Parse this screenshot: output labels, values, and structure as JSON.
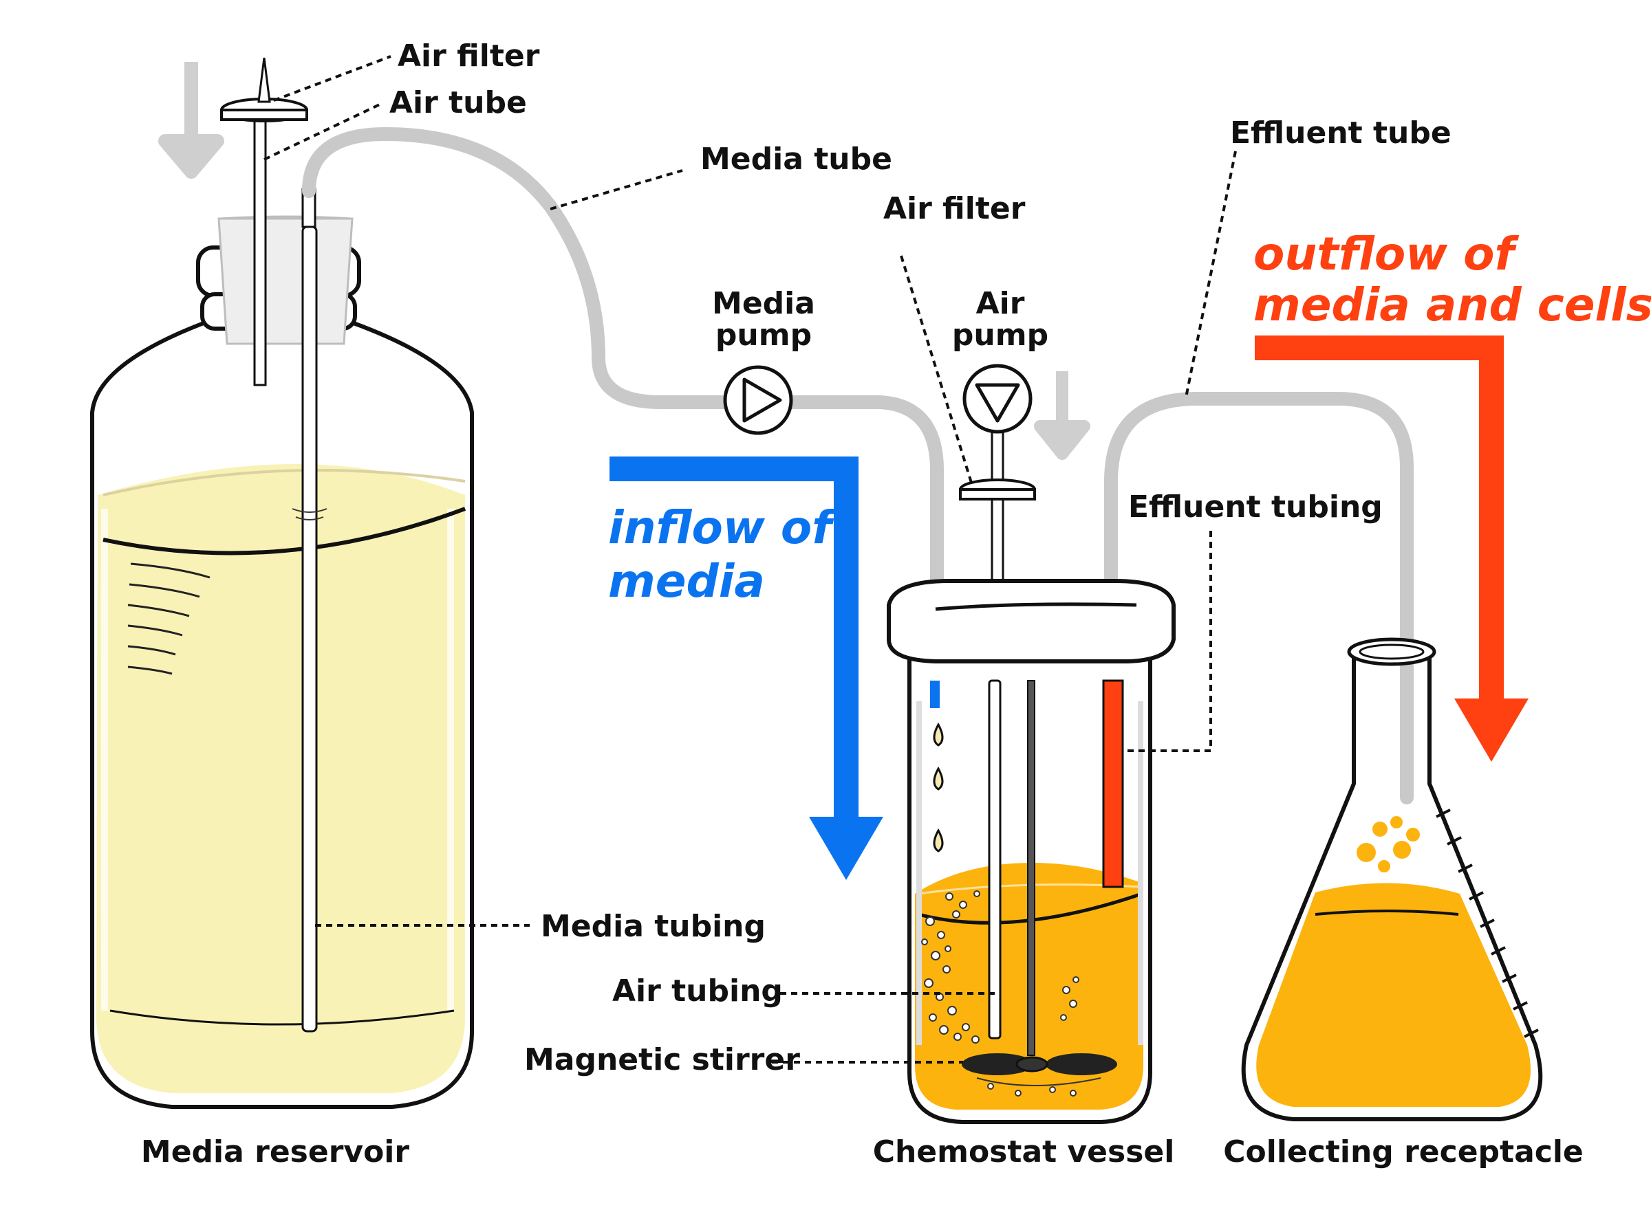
{
  "labels": {
    "air_filter_top": "Air filter",
    "air_tube": "Air tube",
    "media_tube": "Media tube",
    "air_filter_mid": "Air filter",
    "effluent_tube": "Effluent tube",
    "media_pump_1": "Media",
    "media_pump_2": "pump",
    "air_pump_1": "Air",
    "air_pump_2": "pump",
    "effluent_tubing": "Effluent tubing",
    "media_tubing": "Media tubing",
    "air_tubing": "Air tubing",
    "magnetic_stirrer": "Magnetic stirrer",
    "media_reservoir": "Media reservoir",
    "chemostat_vessel": "Chemostat vessel",
    "collecting_receptacle": "Collecting  receptacle"
  },
  "flows": {
    "inflow_1": "inflow of",
    "inflow_2": "media",
    "outflow_1": "outflow of",
    "outflow_2": "media and cells"
  },
  "colors": {
    "inflow": "#0a74f0",
    "outflow": "#ff4010",
    "reservoir_liquid": "#f9f2b6",
    "culture_liquid": "#fdb30d",
    "tubing": "#c9c9c9"
  }
}
